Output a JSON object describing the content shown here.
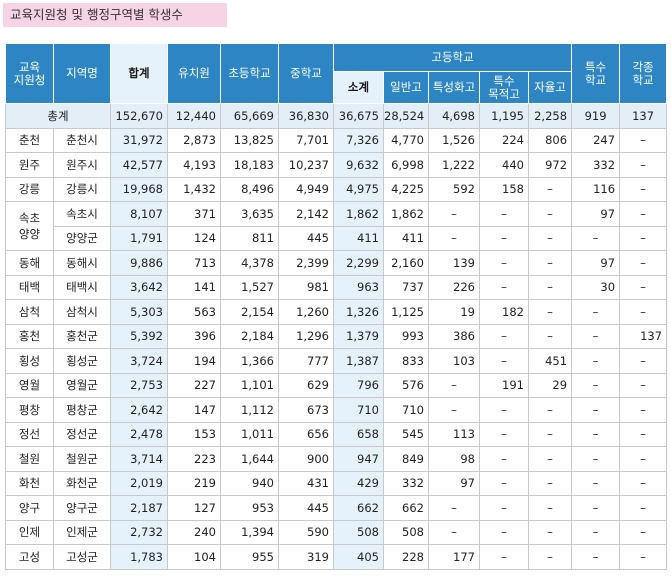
{
  "title": "교육지원청 및 행정구역별 학생수",
  "header": {
    "office": "교육\n지원청",
    "district": "지역명",
    "total": "합계",
    "kindergarten": "유치원",
    "elementary": "초등학교",
    "middle": "중학교",
    "high": "고등학교",
    "high_subtotal": "소계",
    "general_high": "일반고",
    "specialized_high": "특성화고",
    "special_purpose": "특수\n목적고",
    "autonomous": "자율고",
    "special_school": "특수\n학교",
    "misc_school": "각종\n학교"
  },
  "total_row": {
    "label": "총계",
    "values": [
      "152,670",
      "12,440",
      "65,669",
      "36,830",
      "36,675",
      "28,524",
      "4,698",
      "1,195",
      "2,258",
      "919",
      "137"
    ]
  },
  "rows": [
    {
      "office": "춘천",
      "district": "춘천시",
      "values": [
        "31,972",
        "2,873",
        "13,825",
        "7,701",
        "7,326",
        "4,770",
        "1,526",
        "224",
        "806",
        "247",
        "–"
      ]
    },
    {
      "office": "원주",
      "district": "원주시",
      "values": [
        "42,577",
        "4,193",
        "18,183",
        "10,237",
        "9,632",
        "6,998",
        "1,222",
        "440",
        "972",
        "332",
        "–"
      ]
    },
    {
      "office": "강릉",
      "district": "강릉시",
      "values": [
        "19,968",
        "1,432",
        "8,496",
        "4,949",
        "4,975",
        "4,225",
        "592",
        "158",
        "–",
        "116",
        "–"
      ]
    },
    {
      "office": "속초\n양양",
      "district": "속초시",
      "values": [
        "8,107",
        "371",
        "3,635",
        "2,142",
        "1,862",
        "1,862",
        "–",
        "–",
        "–",
        "97",
        "–"
      ]
    },
    {
      "office": "",
      "district": "양양군",
      "values": [
        "1,791",
        "124",
        "811",
        "445",
        "411",
        "411",
        "–",
        "–",
        "–",
        "–",
        "–"
      ]
    },
    {
      "office": "동해",
      "district": "동해시",
      "values": [
        "9,886",
        "713",
        "4,378",
        "2,399",
        "2,299",
        "2,160",
        "139",
        "–",
        "–",
        "97",
        "–"
      ]
    },
    {
      "office": "태백",
      "district": "태백시",
      "values": [
        "3,642",
        "141",
        "1,527",
        "981",
        "963",
        "737",
        "226",
        "–",
        "–",
        "30",
        "–"
      ]
    },
    {
      "office": "삼척",
      "district": "삼척시",
      "values": [
        "5,303",
        "563",
        "2,154",
        "1,260",
        "1,326",
        "1,125",
        "19",
        "182",
        "–",
        "–",
        "–"
      ]
    },
    {
      "office": "홍천",
      "district": "홍천군",
      "values": [
        "5,392",
        "396",
        "2,184",
        "1,296",
        "1,379",
        "993",
        "386",
        "–",
        "–",
        "–",
        "137"
      ]
    },
    {
      "office": "횡성",
      "district": "횡성군",
      "values": [
        "3,724",
        "194",
        "1,366",
        "777",
        "1,387",
        "833",
        "103",
        "–",
        "451",
        "–",
        "–"
      ]
    },
    {
      "office": "영월",
      "district": "영월군",
      "values": [
        "2,753",
        "227",
        "1,101",
        "629",
        "796",
        "576",
        "–",
        "191",
        "29",
        "–",
        "–"
      ]
    },
    {
      "office": "평창",
      "district": "평창군",
      "values": [
        "2,642",
        "147",
        "1,112",
        "673",
        "710",
        "710",
        "–",
        "–",
        "–",
        "–",
        "–"
      ]
    },
    {
      "office": "정선",
      "district": "정선군",
      "values": [
        "2,478",
        "153",
        "1,011",
        "656",
        "658",
        "545",
        "113",
        "–",
        "–",
        "–",
        "–"
      ]
    },
    {
      "office": "철원",
      "district": "철원군",
      "values": [
        "3,714",
        "223",
        "1,644",
        "900",
        "947",
        "849",
        "98",
        "–",
        "–",
        "–",
        "–"
      ]
    },
    {
      "office": "화천",
      "district": "화천군",
      "values": [
        "2,019",
        "219",
        "940",
        "431",
        "429",
        "332",
        "97",
        "–",
        "–",
        "–",
        "–"
      ]
    },
    {
      "office": "양구",
      "district": "양구군",
      "values": [
        "2,187",
        "127",
        "953",
        "445",
        "662",
        "662",
        "–",
        "–",
        "–",
        "–",
        "–"
      ]
    },
    {
      "office": "인제",
      "district": "인제군",
      "values": [
        "2,732",
        "240",
        "1,394",
        "590",
        "508",
        "508",
        "–",
        "–",
        "–",
        "–",
        "–"
      ]
    },
    {
      "office": "고성",
      "district": "고성군",
      "values": [
        "1,783",
        "104",
        "955",
        "319",
        "405",
        "228",
        "177",
        "–",
        "–",
        "–",
        "–"
      ]
    }
  ],
  "colors": {
    "header_blue": "#2e85c4",
    "highlight_light_blue": "#e6f2fb",
    "title_pink": "#f7d3e6"
  }
}
